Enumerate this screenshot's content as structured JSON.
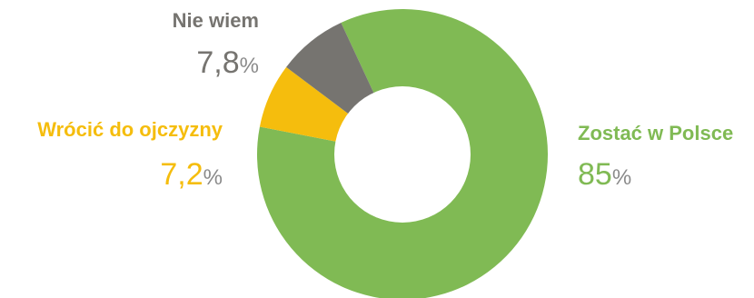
{
  "chart_data": {
    "type": "pie",
    "donut": true,
    "title": "",
    "unit": "%",
    "slices": [
      {
        "label": "Zostać w Polsce",
        "value": 85,
        "value_text": "85",
        "color": "#80ba54"
      },
      {
        "label": "Wrócić do ojczyzny",
        "value": 7.2,
        "value_text": "7,2",
        "color": "#f5bd0d"
      },
      {
        "label": "Nie wiem",
        "value": 7.8,
        "value_text": "7,8",
        "color": "#767470"
      }
    ]
  }
}
